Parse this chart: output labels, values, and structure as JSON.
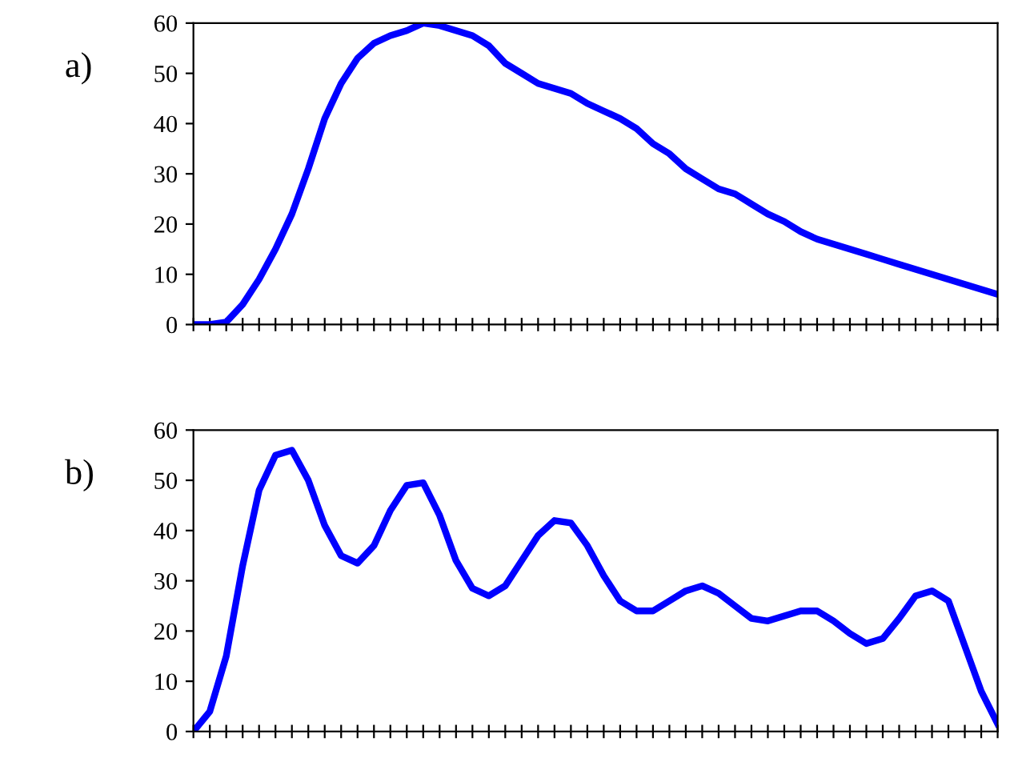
{
  "chart_data": [
    {
      "type": "line",
      "title": "a)",
      "categories": [
        null,
        null,
        null,
        null,
        null,
        null,
        null,
        null,
        null,
        null,
        null,
        null,
        null,
        null,
        null,
        null,
        null,
        null,
        null,
        null,
        null,
        null,
        null,
        null,
        null,
        null,
        null,
        null,
        null,
        null,
        null,
        null,
        null,
        null,
        null,
        null,
        null,
        null,
        null,
        null,
        null,
        null,
        null,
        null,
        null,
        null,
        null,
        null,
        null,
        null
      ],
      "series": [
        {
          "color": "#0000ff",
          "values": [
            0,
            0,
            0.5,
            4,
            9,
            15,
            22,
            31,
            41,
            48,
            53,
            56,
            57.5,
            58.5,
            60,
            59.5,
            58.5,
            57.5,
            55.5,
            52,
            50,
            48,
            47,
            46,
            44,
            42.5,
            41,
            39,
            36,
            34,
            31,
            29,
            27,
            26,
            24,
            22,
            20.5,
            18.5,
            17,
            16,
            15,
            14,
            13,
            12,
            11,
            10,
            9,
            8,
            7,
            6
          ]
        }
      ],
      "ylim": [
        0,
        60
      ],
      "yticks": [
        0,
        10,
        20,
        30,
        40,
        50,
        60
      ],
      "tick_labels": "y",
      "grid": false,
      "legend": false,
      "marker": "none",
      "line_style": "solid"
    },
    {
      "type": "line",
      "title": "b)",
      "categories": [
        null,
        null,
        null,
        null,
        null,
        null,
        null,
        null,
        null,
        null,
        null,
        null,
        null,
        null,
        null,
        null,
        null,
        null,
        null,
        null,
        null,
        null,
        null,
        null,
        null,
        null,
        null,
        null,
        null,
        null,
        null,
        null,
        null,
        null,
        null,
        null,
        null,
        null,
        null,
        null,
        null,
        null,
        null,
        null,
        null,
        null,
        null,
        null,
        null,
        null
      ],
      "series": [
        {
          "color": "#0000ff",
          "values": [
            0,
            4,
            15,
            33,
            48,
            55,
            56,
            50,
            41,
            35,
            33.5,
            37,
            44,
            49,
            49.5,
            43,
            34,
            28.5,
            27,
            29,
            34,
            39,
            42,
            41.5,
            37,
            31,
            26,
            24,
            24,
            26,
            28,
            29,
            27.5,
            25,
            22.5,
            22,
            23,
            24,
            24,
            22,
            19.5,
            17.5,
            18.5,
            22.5,
            27,
            28,
            26,
            17,
            8,
            1.5
          ]
        }
      ],
      "ylim": [
        0,
        60
      ],
      "yticks": [
        0,
        10,
        20,
        30,
        40,
        50,
        60
      ],
      "tick_labels": "y",
      "grid": false,
      "legend": false,
      "marker": "none",
      "line_style": "solid"
    }
  ]
}
